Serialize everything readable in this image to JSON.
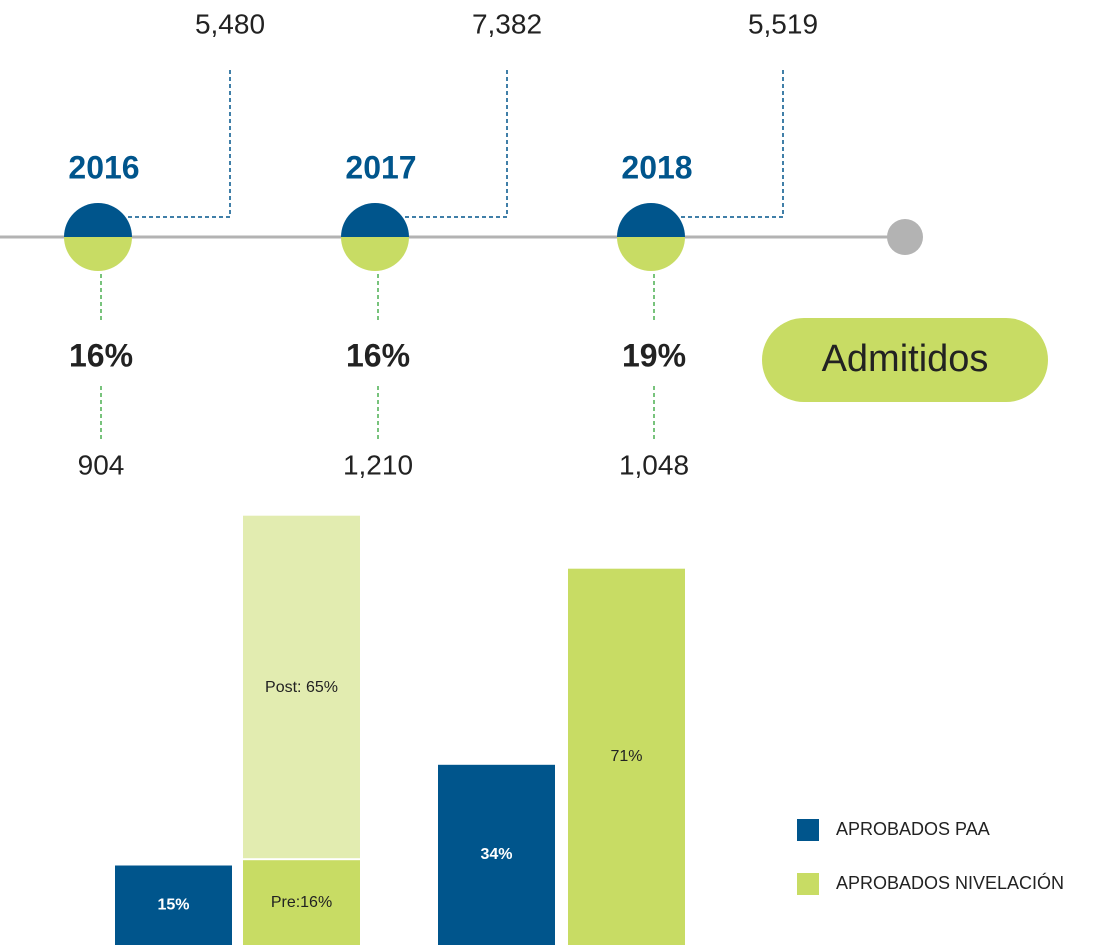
{
  "timeline": {
    "items": [
      {
        "year": "2016",
        "top": "5,480",
        "percent": "16%",
        "bottom": "904"
      },
      {
        "year": "2017",
        "top": "7,382",
        "percent": "16%",
        "bottom": "1,210"
      },
      {
        "year": "2018",
        "top": "5,519",
        "percent": "19%",
        "bottom": "1,048"
      }
    ],
    "label": "Admitidos"
  },
  "chart_data": {
    "type": "bar",
    "stacked": true,
    "categories": [
      null,
      null
    ],
    "series": [
      {
        "name": "APROBADOS PAA",
        "color": "#00558c",
        "values": [
          15,
          34
        ],
        "value_labels": [
          "15%",
          "34%"
        ]
      },
      {
        "name": "APROBADOS NIVELACIÓN",
        "color": "#c8dc64",
        "values": [
          16,
          71
        ],
        "value_labels": [
          "Pre:16%",
          "71%"
        ]
      },
      {
        "color": "#e2ecb0",
        "values": [
          65,
          null
        ],
        "value_labels": [
          "Post: 65%",
          null
        ],
        "stack_on": 1
      }
    ]
  }
}
